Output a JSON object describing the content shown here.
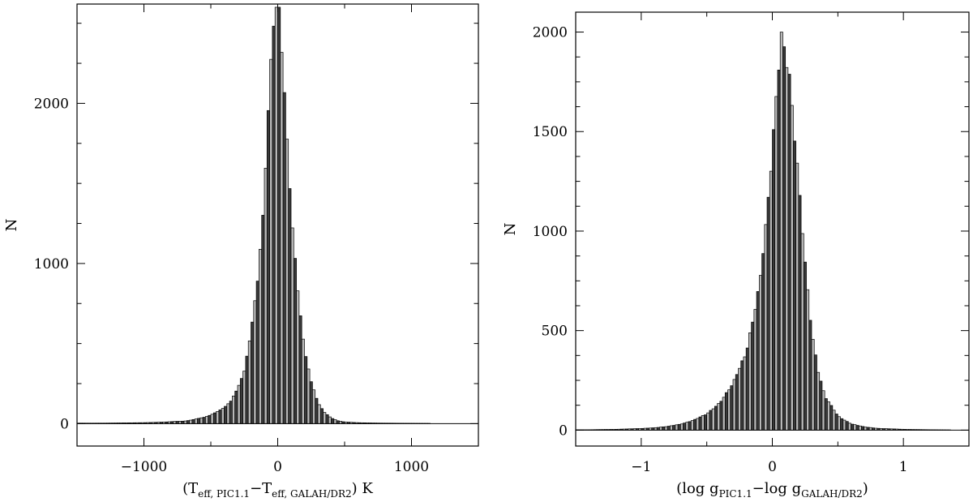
{
  "chart_data": [
    {
      "type": "bar",
      "title": "",
      "ylabel": "N",
      "xlabel": {
        "prefix": "(T",
        "sub1": "eff, PIC1.1",
        "mid": "−T",
        "sub2": "eff, GALAH/DR2",
        "suffix": ")  K"
      },
      "xlim": [
        -1500,
        1500
      ],
      "ylim": [
        -140,
        2620
      ],
      "xticks": [
        -1000,
        0,
        1000
      ],
      "xtick_labels": [
        "−1000",
        "0",
        "1000"
      ],
      "yticks": [
        0,
        1000,
        2000
      ],
      "ytick_labels": [
        "0",
        "1000",
        "2000"
      ],
      "bin_width": 20,
      "peak_center": 0,
      "peak_value": 2600,
      "series": [
        {
          "x": [
            -1300,
            -1000,
            -900,
            -800,
            -700,
            -650,
            -600,
            -550,
            -500,
            -450,
            -400,
            -350,
            -300,
            -250,
            -200,
            -150,
            -100,
            -80,
            -60,
            -40,
            -20,
            0,
            20,
            40,
            60,
            80,
            100,
            150,
            200,
            250,
            300,
            350,
            400,
            450,
            500,
            600,
            700,
            800,
            1000,
            1300
          ],
          "y": [
            3,
            6,
            8,
            12,
            16,
            22,
            30,
            40,
            55,
            75,
            100,
            140,
            220,
            330,
            550,
            900,
            1450,
            1780,
            2080,
            2330,
            2480,
            2600,
            2500,
            2290,
            1980,
            1620,
            1280,
            820,
            470,
            260,
            130,
            70,
            35,
            18,
            10,
            6,
            4,
            3,
            2,
            1
          ]
        }
      ]
    },
    {
      "type": "bar",
      "title": "",
      "ylabel": "N",
      "xlabel": {
        "prefix": "(log  g",
        "sub1": "PIC1.1",
        "mid": "−log  g",
        "sub2": "GALAH/DR2",
        "suffix": ")"
      },
      "xlim": [
        -1.5,
        1.5
      ],
      "ylim": [
        -80,
        2100
      ],
      "xticks": [
        -1,
        0,
        1
      ],
      "xtick_labels": [
        "−1",
        "0",
        "1"
      ],
      "yticks": [
        0,
        500,
        1000,
        1500,
        2000
      ],
      "ytick_labels": [
        "0",
        "500",
        "1000",
        "1500",
        "2000"
      ],
      "bin_width": 0.02,
      "peak_center": 0.07,
      "peak_value": 2000,
      "series": [
        {
          "x": [
            -1.4,
            -1.2,
            -1.0,
            -0.9,
            -0.8,
            -0.7,
            -0.6,
            -0.5,
            -0.4,
            -0.3,
            -0.2,
            -0.1,
            -0.05,
            0.0,
            0.03,
            0.05,
            0.07,
            0.1,
            0.13,
            0.15,
            0.2,
            0.25,
            0.3,
            0.35,
            0.4,
            0.5,
            0.6,
            0.7,
            0.8,
            1.0,
            1.2,
            1.4
          ],
          "y": [
            2,
            4,
            8,
            12,
            18,
            30,
            50,
            80,
            140,
            230,
            390,
            720,
            1000,
            1380,
            1680,
            1860,
            2000,
            1930,
            1780,
            1620,
            1230,
            830,
            500,
            300,
            170,
            70,
            32,
            16,
            9,
            4,
            2,
            1
          ]
        }
      ]
    }
  ]
}
